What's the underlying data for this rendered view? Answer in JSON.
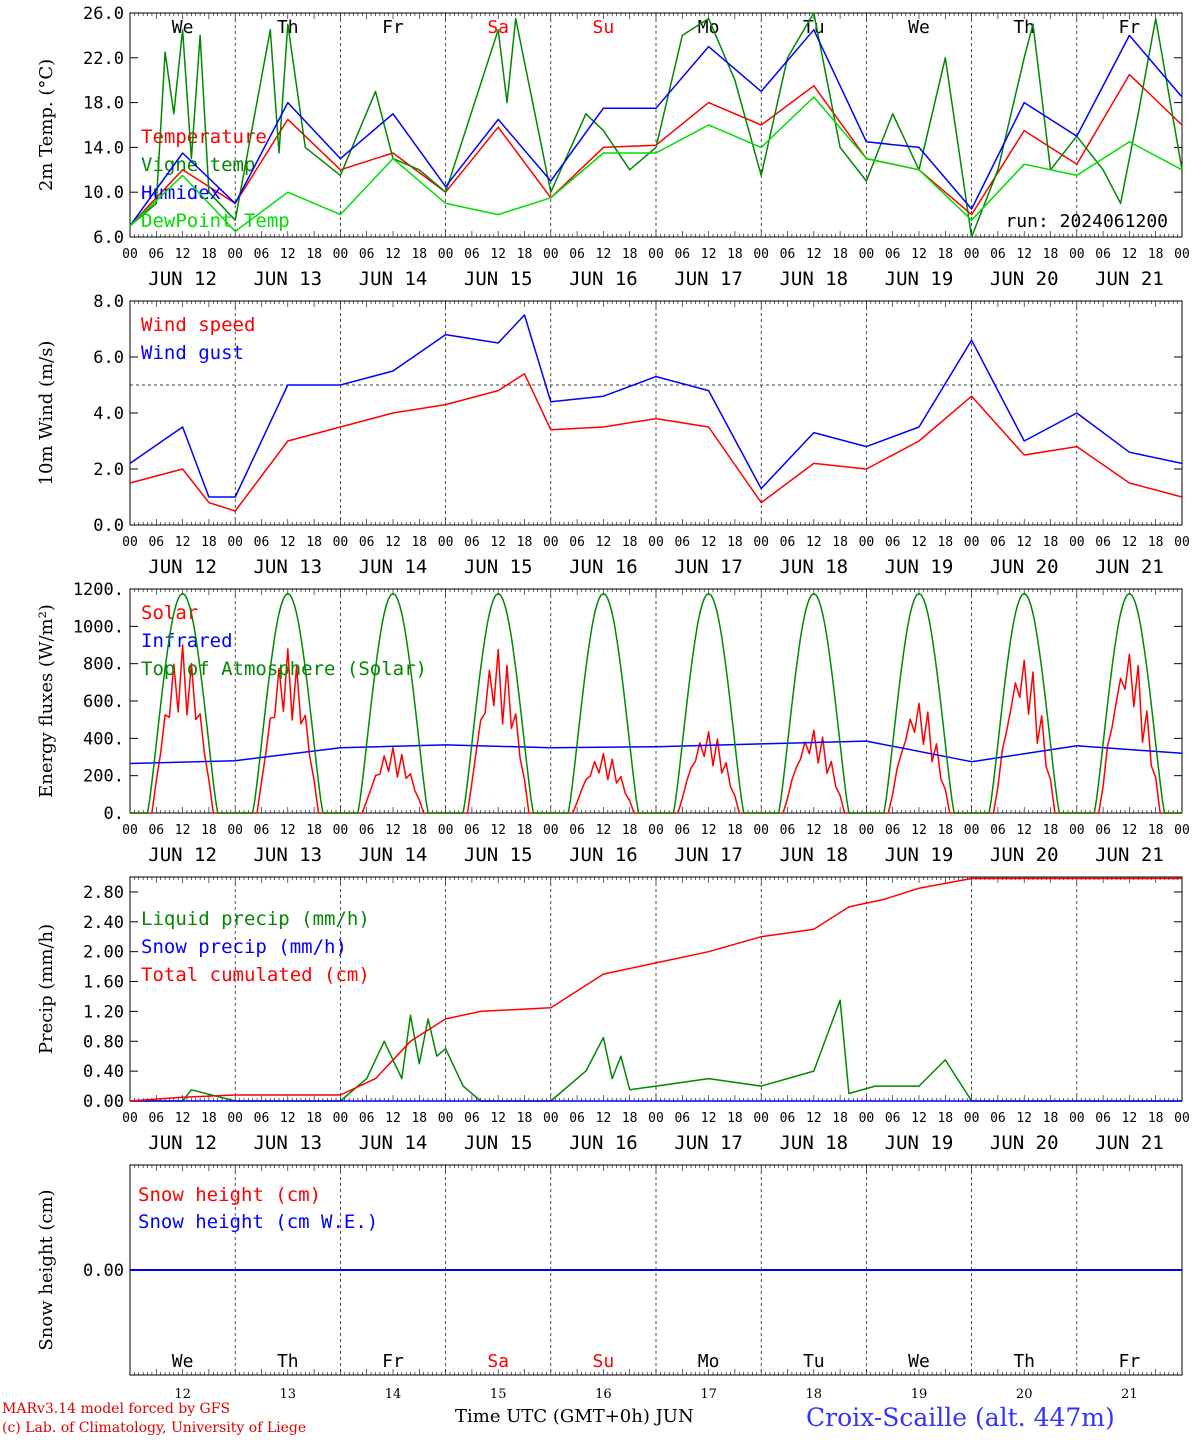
{
  "chart_data": [
    {
      "type": "line",
      "panel": "temperature",
      "ylabel": "2m Temp. (°C)",
      "ylim": [
        6.0,
        26.0
      ],
      "yticks": [
        "6.0",
        "10.0",
        "14.0",
        "18.0",
        "22.0",
        "26.0"
      ],
      "grid": "vertical dashed day separators",
      "legend": "top-left",
      "annotation": "run: 2024061200",
      "series": [
        {
          "name": "Temperature",
          "color": "#ff0000",
          "x_hours": [
            0,
            12,
            24,
            36,
            48,
            60,
            72,
            84,
            96,
            108,
            120,
            132,
            144,
            156,
            168,
            180,
            192,
            204,
            216,
            228,
            240
          ],
          "values": [
            7.0,
            12.0,
            9.0,
            16.5,
            12.0,
            13.5,
            10.0,
            15.8,
            9.5,
            14.0,
            14.2,
            18.0,
            16.0,
            19.5,
            13.0,
            12.0,
            8.0,
            15.5,
            12.5,
            20.5,
            16.0
          ]
        },
        {
          "name": "Vigne temp",
          "color": "#008800",
          "x_hours": [
            0,
            6,
            8,
            10,
            12,
            14,
            16,
            18,
            24,
            32,
            34,
            36,
            40,
            48,
            56,
            60,
            66,
            72,
            84,
            86,
            88,
            96,
            104,
            108,
            114,
            120,
            126,
            132,
            138,
            144,
            150,
            156,
            162,
            168,
            174,
            180,
            186,
            192,
            198,
            204,
            206,
            210,
            216,
            222,
            226,
            230,
            234,
            240
          ],
          "values": [
            7.0,
            9.0,
            22.5,
            17.0,
            24.5,
            13.0,
            24.0,
            10.0,
            7.5,
            24.5,
            13.5,
            25.0,
            14.0,
            11.5,
            19.0,
            13.0,
            12.0,
            10.0,
            24.5,
            18.0,
            25.5,
            10.0,
            17.0,
            15.5,
            12.0,
            14.0,
            24.0,
            25.5,
            20.0,
            11.5,
            22.0,
            26.0,
            14.0,
            11.0,
            17.0,
            12.0,
            22.0,
            6.0,
            12.0,
            22.0,
            25.0,
            12.0,
            15.0,
            12.0,
            9.0,
            17.0,
            25.5,
            12.0
          ]
        },
        {
          "name": "Humidex",
          "color": "#0000ff",
          "x_hours": [
            0,
            12,
            24,
            36,
            48,
            60,
            72,
            84,
            96,
            108,
            120,
            132,
            144,
            156,
            168,
            180,
            192,
            204,
            216,
            228,
            240
          ],
          "values": [
            7.0,
            13.5,
            9.0,
            18.0,
            13.0,
            17.0,
            10.5,
            16.5,
            11.0,
            17.5,
            17.5,
            23.0,
            19.0,
            24.5,
            14.5,
            14.0,
            8.5,
            18.0,
            15.0,
            24.0,
            18.5
          ]
        },
        {
          "name": "DewPoint Temp",
          "color": "#00dd00",
          "x_hours": [
            0,
            12,
            24,
            36,
            48,
            60,
            72,
            84,
            96,
            108,
            120,
            132,
            144,
            156,
            168,
            180,
            192,
            204,
            216,
            228,
            240
          ],
          "values": [
            7.0,
            11.5,
            6.5,
            10.0,
            8.0,
            13.0,
            9.0,
            8.0,
            9.5,
            13.5,
            13.5,
            16.0,
            14.0,
            18.5,
            13.0,
            12.0,
            7.5,
            12.5,
            11.5,
            14.5,
            12.0
          ]
        }
      ]
    },
    {
      "type": "line",
      "panel": "wind",
      "ylabel": "10m Wind (m/s)",
      "ylim": [
        0.0,
        8.0
      ],
      "yticks": [
        "0.0",
        "2.0",
        "4.0",
        "6.0",
        "8.0"
      ],
      "reference_line": 5.0,
      "legend": "top-left",
      "series": [
        {
          "name": "Wind speed",
          "color": "#ff0000",
          "x_hours": [
            0,
            12,
            18,
            24,
            36,
            48,
            60,
            72,
            84,
            90,
            96,
            108,
            120,
            132,
            144,
            156,
            168,
            180,
            192,
            204,
            216,
            228,
            240
          ],
          "values": [
            1.5,
            2.0,
            0.8,
            0.5,
            3.0,
            3.5,
            4.0,
            4.3,
            4.8,
            5.4,
            3.4,
            3.5,
            3.8,
            3.5,
            0.8,
            2.2,
            2.0,
            3.0,
            4.6,
            2.5,
            2.8,
            1.5,
            1.0
          ]
        },
        {
          "name": "Wind gust",
          "color": "#0000ff",
          "x_hours": [
            0,
            12,
            18,
            24,
            36,
            48,
            60,
            72,
            84,
            90,
            96,
            108,
            120,
            132,
            144,
            156,
            168,
            180,
            192,
            204,
            216,
            228,
            240
          ],
          "values": [
            2.2,
            3.5,
            1.0,
            1.0,
            5.0,
            5.0,
            5.5,
            6.8,
            6.5,
            7.5,
            4.4,
            4.6,
            5.3,
            4.8,
            1.3,
            3.3,
            2.8,
            3.5,
            6.6,
            3.0,
            4.0,
            2.6,
            2.2
          ]
        }
      ]
    },
    {
      "type": "line",
      "panel": "energy",
      "ylabel": "Energy fluxes (W/m²)",
      "ylim": [
        0,
        1200
      ],
      "yticks": [
        "0.",
        "200.",
        "400.",
        "600.",
        "800.",
        "1000.",
        "1200."
      ],
      "legend": "top-left",
      "series": [
        {
          "name": "Solar",
          "color": "#ff0000",
          "note": "daily peaks (W/m²)",
          "day_peaks": [
            900,
            880,
            350,
            880,
            320,
            440,
            450,
            600,
            840,
            880
          ]
        },
        {
          "name": "Infrared",
          "color": "#0000ff",
          "x_hours": [
            0,
            24,
            48,
            72,
            96,
            120,
            144,
            168,
            192,
            216,
            240
          ],
          "values": [
            265,
            280,
            350,
            365,
            350,
            355,
            370,
            385,
            275,
            360,
            320
          ]
        },
        {
          "name": "Top of Atmosphere (Solar)",
          "color": "#008800",
          "note": "daily diurnal curve, peak at 12 UTC",
          "peak": 1175
        }
      ]
    },
    {
      "type": "line",
      "panel": "precip",
      "ylabel": "Precip (mm/h)",
      "ylim": [
        0.0,
        3.0
      ],
      "yticks": [
        "0.00",
        "0.40",
        "0.80",
        "1.20",
        "1.60",
        "2.00",
        "2.40",
        "2.80"
      ],
      "legend": "top-left",
      "series": [
        {
          "name": "Liquid precip (mm/h)",
          "color": "#008800",
          "x_hours": [
            0,
            12,
            14,
            24,
            48,
            54,
            58,
            62,
            64,
            66,
            68,
            70,
            72,
            76,
            80,
            96,
            104,
            108,
            110,
            112,
            114,
            120,
            132,
            144,
            156,
            162,
            164,
            170,
            180,
            186,
            192,
            240
          ],
          "values": [
            0,
            0,
            0.15,
            0,
            0,
            0.3,
            0.8,
            0.3,
            1.15,
            0.5,
            1.1,
            0.6,
            0.7,
            0.2,
            0,
            0,
            0.4,
            0.85,
            0.3,
            0.6,
            0.15,
            0.2,
            0.3,
            0.2,
            0.4,
            1.35,
            0.1,
            0.2,
            0.2,
            0.55,
            0,
            0
          ]
        },
        {
          "name": "Snow precip (mm/h)",
          "color": "#0000ff",
          "x_hours": [
            0,
            240
          ],
          "values": [
            0,
            0
          ]
        },
        {
          "name": "Total cumulated (cm)",
          "color": "#ff0000",
          "x_hours": [
            0,
            12,
            24,
            48,
            56,
            64,
            72,
            80,
            96,
            108,
            120,
            132,
            144,
            156,
            164,
            172,
            180,
            192,
            204,
            216,
            228,
            240
          ],
          "values": [
            0,
            0.05,
            0.08,
            0.08,
            0.3,
            0.8,
            1.1,
            1.2,
            1.25,
            1.7,
            1.85,
            2.0,
            2.2,
            2.3,
            2.6,
            2.7,
            2.85,
            2.98,
            2.98,
            2.98,
            2.98,
            2.98
          ]
        }
      ]
    },
    {
      "type": "line",
      "panel": "snow",
      "ylabel": "Snow height (cm)",
      "yticks": [
        "0.00"
      ],
      "legend": "top-left",
      "series": [
        {
          "name": "Snow height (cm)",
          "color": "#ff0000",
          "x_hours": [
            0,
            240
          ],
          "values": [
            0,
            0
          ]
        },
        {
          "name": "Snow height (cm W.E.)",
          "color": "#0000ff",
          "x_hours": [
            0,
            240
          ],
          "values": [
            0,
            0
          ]
        }
      ]
    }
  ],
  "axis": {
    "hour_labels": [
      "00",
      "06",
      "12",
      "18"
    ],
    "final_hour_label": "00",
    "dates": [
      "JUN 12",
      "JUN 13",
      "JUN 14",
      "JUN 15",
      "JUN 16",
      "JUN 17",
      "JUN 18",
      "JUN 19",
      "JUN 20",
      "JUN 21"
    ],
    "weekdays": [
      "We",
      "Th",
      "Fr",
      "Sa",
      "Su",
      "Mo",
      "Tu",
      "We",
      "Th",
      "Fr"
    ],
    "weekend_color": "#ff0000",
    "day_numbers": [
      "12",
      "13",
      "14",
      "15",
      "16",
      "17",
      "18",
      "19",
      "20",
      "21"
    ],
    "title": "Time UTC (GMT+0h) JUN"
  },
  "footer": {
    "credit1": "MARv3.14 model forced by GFS",
    "credit2": "(c) Lab. of Climatology, University of Liege",
    "station": "Croix-Scaille (alt. 447m)"
  }
}
